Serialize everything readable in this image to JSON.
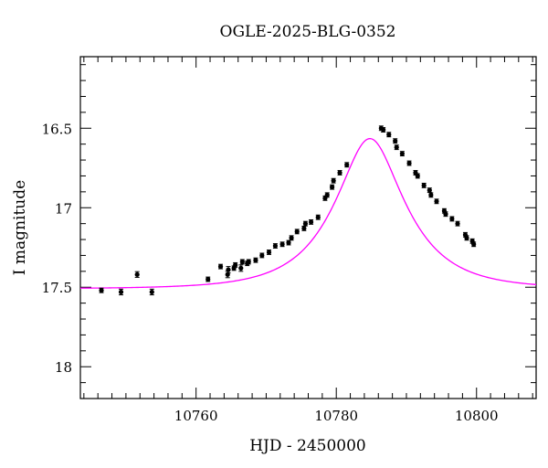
{
  "chart_data": {
    "type": "scatter",
    "title": "OGLE-2025-BLG-0352",
    "xlabel": "HJD - 2450000",
    "ylabel": "I magnitude",
    "xlim": [
      10743.5,
      10808.5
    ],
    "ylim": [
      18.2,
      16.05
    ],
    "y_inverted": true,
    "grid": false,
    "x_ticks": [
      10760,
      10780,
      10800
    ],
    "x_tick_labels": [
      "10760",
      "10780",
      "10800"
    ],
    "y_ticks": [
      16.5,
      17.0,
      17.5,
      18.0
    ],
    "y_tick_labels": [
      "16.5",
      "17",
      "17.5",
      "18"
    ],
    "series": [
      {
        "type": "scatter",
        "color": "#000000",
        "x": [
          10746.5,
          10749.3,
          10751.6,
          10753.7,
          10761.7,
          10763.5,
          10764.5,
          10764.6,
          10765.4,
          10765.6,
          10766.4,
          10766.6,
          10767.3,
          10767.5,
          10768.5,
          10769.4,
          10770.4,
          10771.3,
          10772.3,
          10773.2,
          10773.6,
          10774.4,
          10775.4,
          10775.6,
          10776.4,
          10777.4,
          10778.4,
          10778.7,
          10779.4,
          10779.6,
          10780.5,
          10781.5,
          10786.4,
          10786.7,
          10787.5,
          10788.4,
          10788.6,
          10789.4,
          10790.4,
          10791.3,
          10791.6,
          10792.5,
          10793.3,
          10793.5,
          10794.3,
          10795.4,
          10795.6,
          10796.5,
          10797.3,
          10798.4,
          10798.6,
          10799.4,
          10799.6
        ],
        "y": [
          17.52,
          17.53,
          17.42,
          17.53,
          17.45,
          17.37,
          17.42,
          17.39,
          17.38,
          17.36,
          17.38,
          17.34,
          17.35,
          17.34,
          17.33,
          17.3,
          17.28,
          17.24,
          17.23,
          17.22,
          17.19,
          17.15,
          17.13,
          17.1,
          17.09,
          17.06,
          16.94,
          16.92,
          16.87,
          16.83,
          16.78,
          16.73,
          16.5,
          16.51,
          16.54,
          16.58,
          16.62,
          16.66,
          16.72,
          16.78,
          16.8,
          16.86,
          16.89,
          16.92,
          16.96,
          17.02,
          17.04,
          17.07,
          17.1,
          17.17,
          17.19,
          17.21,
          17.23
        ],
        "yerr": [
          0.014,
          0.018,
          0.018,
          0.018,
          0.014,
          0.014,
          0.02,
          0.02,
          0.014,
          0.014,
          0.02,
          0.014,
          0.014,
          0.014,
          0.014,
          0.014,
          0.014,
          0.014,
          0.014,
          0.014,
          0.014,
          0.014,
          0.014,
          0.014,
          0.014,
          0.014,
          0.014,
          0.014,
          0.014,
          0.014,
          0.014,
          0.014,
          0.014,
          0.014,
          0.014,
          0.014,
          0.014,
          0.014,
          0.014,
          0.014,
          0.014,
          0.014,
          0.014,
          0.014,
          0.014,
          0.014,
          0.014,
          0.014,
          0.014,
          0.014,
          0.014,
          0.014,
          0.014
        ]
      },
      {
        "type": "line",
        "color": "#ff00ff",
        "model": "single-lens microlensing fit",
        "t0": 10784.8,
        "tE": 9.0,
        "u0": 0.45,
        "baseline_mag": 17.51,
        "x_range": [
          10743.5,
          10808.5
        ]
      }
    ]
  }
}
